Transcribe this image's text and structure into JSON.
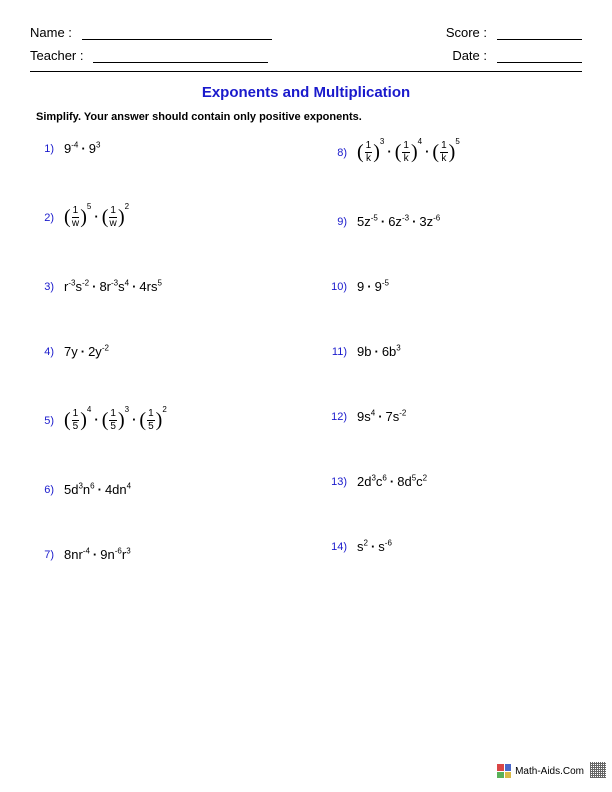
{
  "header": {
    "name_label": "Name :",
    "teacher_label": "Teacher :",
    "score_label": "Score :",
    "date_label": "Date :"
  },
  "colors": {
    "title": "#1a1acc",
    "problem_number": "#1a1acc",
    "text": "#000000"
  },
  "title": "Exponents and Multiplication",
  "instructions": "Simplify.  Your answer should contain only positive exponents.",
  "problems_left": [
    {
      "n": "1)",
      "expr": "9<sup>-4</sup><span class=\"dot\">·</span>9<sup>3</sup>"
    },
    {
      "n": "2)",
      "expr": "<span class=\"paren\">(</span><span class=\"frac\"><span class=\"num\">1</span><span class=\"den\">w</span></span><span class=\"paren\">)</span><span class=\"outer-sup\">5</span><span class=\"dot\">·</span><span class=\"paren\">(</span><span class=\"frac\"><span class=\"num\">1</span><span class=\"den\">w</span></span><span class=\"paren\">)</span><span class=\"outer-sup\">2</span>"
    },
    {
      "n": "3)",
      "expr": "r<sup>-3</sup>s<sup>-2</sup><span class=\"dot\">·</span>8r<sup>-3</sup>s<sup>4</sup><span class=\"dot\">·</span>4rs<sup>5</sup>"
    },
    {
      "n": "4)",
      "expr": "7y<span class=\"dot\">·</span>2y<sup>-2</sup>"
    },
    {
      "n": "5)",
      "expr": "<span class=\"paren\">(</span><span class=\"frac\"><span class=\"num\">1</span><span class=\"den\">5</span></span><span class=\"paren\">)</span><span class=\"outer-sup\">4</span><span class=\"dot\">·</span><span class=\"paren\">(</span><span class=\"frac\"><span class=\"num\">1</span><span class=\"den\">5</span></span><span class=\"paren\">)</span><span class=\"outer-sup\">3</span><span class=\"dot\">·</span><span class=\"paren\">(</span><span class=\"frac\"><span class=\"num\">1</span><span class=\"den\">5</span></span><span class=\"paren\">)</span><span class=\"outer-sup\">2</span>"
    },
    {
      "n": "6)",
      "expr": "5d<sup>3</sup>n<sup>6</sup><span class=\"dot\">·</span>4dn<sup>4</sup>"
    },
    {
      "n": "7)",
      "expr": "8nr<sup>-4</sup><span class=\"dot\">·</span>9n<sup>-6</sup>r<sup>3</sup>"
    }
  ],
  "problems_right": [
    {
      "n": "8)",
      "expr": "<span class=\"paren\">(</span><span class=\"frac\"><span class=\"num\">1</span><span class=\"den\">k</span></span><span class=\"paren\">)</span><span class=\"outer-sup\">3</span><span class=\"dot\">·</span><span class=\"paren\">(</span><span class=\"frac\"><span class=\"num\">1</span><span class=\"den\">k</span></span><span class=\"paren\">)</span><span class=\"outer-sup\">4</span><span class=\"dot\">·</span><span class=\"paren\">(</span><span class=\"frac\"><span class=\"num\">1</span><span class=\"den\">k</span></span><span class=\"paren\">)</span><span class=\"outer-sup\">5</span>"
    },
    {
      "n": "9)",
      "expr": "5z<sup>-5</sup><span class=\"dot\">·</span>6z<sup>-3</sup><span class=\"dot\">·</span>3z<sup>-6</sup>"
    },
    {
      "n": "10)",
      "expr": "9<span class=\"dot\">·</span>9<sup>-5</sup>"
    },
    {
      "n": "11)",
      "expr": "9b<span class=\"dot\">·</span>6b<sup>3</sup>"
    },
    {
      "n": "12)",
      "expr": "9s<sup>4</sup><span class=\"dot\">·</span>7s<sup>-2</sup>"
    },
    {
      "n": "13)",
      "expr": "2d<sup>3</sup>c<sup>6</sup><span class=\"dot\">·</span>8d<sup>5</sup>c<sup>2</sup>"
    },
    {
      "n": "14)",
      "expr": "s<sup>2</sup><span class=\"dot\">·</span>s<sup>-6</sup>"
    }
  ],
  "footer": {
    "text": "Math-Aids.Com",
    "icon_colors": [
      "#d94545",
      "#4a68c9",
      "#59b159",
      "#d9ba45"
    ]
  }
}
